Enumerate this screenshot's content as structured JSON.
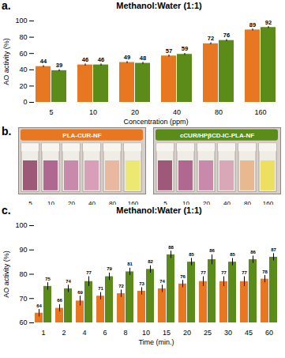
{
  "chart_data": [
    {
      "type": "bar",
      "title": "Methanol:Water (1:1)",
      "xlabel": "Concentration (ppm)",
      "ylabel": "AO activity (%)",
      "annotations": [
        "a."
      ],
      "categories": [
        "5",
        "10",
        "20",
        "40",
        "80",
        "160"
      ],
      "series": [
        {
          "color": "#E87722",
          "values": [
            44,
            46,
            49,
            57,
            72,
            89
          ],
          "errors": [
            1.2,
            1.2,
            1.2,
            1.2,
            1.2,
            1.2
          ]
        },
        {
          "color": "#5B8C1A",
          "values": [
            39,
            46,
            48,
            59,
            76,
            92
          ],
          "errors": [
            1.2,
            1.2,
            1.2,
            1.2,
            1.2,
            1.2
          ]
        }
      ],
      "ylim": [
        0,
        100
      ],
      "yticks": [
        0,
        20,
        40,
        60,
        80,
        100
      ],
      "data_labels": true,
      "grid": false
    },
    {
      "type": "swatch",
      "annotations": [
        "b."
      ],
      "categories": [
        "5",
        "10",
        "20",
        "40",
        "80",
        "160"
      ],
      "series": [
        {
          "name": "PLA-CUR-NF",
          "color": "#E87722",
          "colors": [
            "#9e5878",
            "#b06890",
            "#c88aaa",
            "#d8a0b8",
            "#e8b8a0",
            "#ede870"
          ]
        },
        {
          "name": "cCUR/HPβCD-IC-PLA-NF",
          "color": "#5B8C1A",
          "colors": [
            "#9e5878",
            "#b06890",
            "#c88aaa",
            "#d8a8b8",
            "#e8b890",
            "#ede060"
          ]
        }
      ]
    },
    {
      "type": "bar",
      "title": "Methanol:Water (1:1)",
      "xlabel": "Time (min.)",
      "ylabel": "AO activity (%)",
      "annotations": [
        "c."
      ],
      "categories": [
        "1",
        "2",
        "4",
        "6",
        "8",
        "10",
        "15",
        "20",
        "25",
        "30",
        "45",
        "60"
      ],
      "series": [
        {
          "color": "#E87722",
          "values": [
            64,
            66,
            69,
            71,
            72,
            73,
            74,
            76,
            77,
            77,
            77,
            78
          ],
          "errors": [
            1.5,
            1.5,
            2.0,
            1.5,
            1.5,
            1.5,
            1.5,
            1.5,
            2.0,
            2.0,
            2.0,
            1.5
          ]
        },
        {
          "color": "#5B8C1A",
          "values": [
            75,
            74,
            77,
            79,
            81,
            82,
            88,
            85,
            86,
            85,
            86,
            87
          ],
          "errors": [
            1.5,
            1.5,
            2.0,
            1.5,
            1.5,
            1.5,
            1.5,
            1.5,
            2.0,
            1.5,
            1.5,
            1.5
          ]
        }
      ],
      "ylim": [
        60,
        100
      ],
      "yticks": [
        60,
        70,
        80,
        90,
        100
      ],
      "data_labels": true,
      "grid": false
    }
  ]
}
